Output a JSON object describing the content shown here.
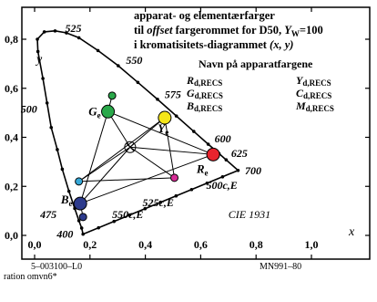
{
  "chart_data": {
    "type": "scatter",
    "title_lines": [
      "apparat- og elementærfarger",
      "til offset fargerommet for D50, Y_W=100",
      "i kromatisitets-diagrammet (x, y)"
    ],
    "title_parts": {
      "line2_a": "til ",
      "line2_offset": "offset",
      "line2_b": " fargerommet for D50, ",
      "line2_Y": "Y",
      "line2_W": "W",
      "line2_eq": "=100",
      "line3_a": "i kromatisitets-diagrammet ",
      "line3_xy": "(x, y)"
    },
    "legend_heading": "Navn på apparatfargene",
    "legend": [
      {
        "sym": "R",
        "sub": "d,RECS"
      },
      {
        "sym": "G",
        "sub": "d,RECS"
      },
      {
        "sym": "B",
        "sub": "d,RECS"
      },
      {
        "sym": "Y",
        "sub": "d,RECS"
      },
      {
        "sym": "C",
        "sub": "d,RECS"
      },
      {
        "sym": "M",
        "sub": "d,RECS"
      }
    ],
    "xlabel": "x",
    "ylabel": "y",
    "xlim": [
      0,
      1.1
    ],
    "ylim": [
      0,
      0.9
    ],
    "xticks": [
      "0,0",
      "0,2",
      "0,4",
      "0,6",
      "0,8",
      "1,0"
    ],
    "yticks": [
      "0,0",
      "0,2",
      "0,4",
      "0,6",
      "0,8"
    ],
    "spectral_locus": [
      [
        0.175,
        0.005
      ],
      [
        0.17,
        0.03
      ],
      [
        0.16,
        0.06
      ],
      [
        0.145,
        0.11
      ],
      [
        0.124,
        0.18
      ],
      [
        0.1,
        0.27
      ],
      [
        0.082,
        0.35
      ],
      [
        0.06,
        0.44
      ],
      [
        0.045,
        0.54
      ],
      [
        0.03,
        0.64
      ],
      [
        0.012,
        0.75
      ],
      [
        0.01,
        0.8
      ],
      [
        0.035,
        0.83
      ],
      [
        0.074,
        0.834
      ],
      [
        0.115,
        0.826
      ],
      [
        0.16,
        0.806
      ],
      [
        0.229,
        0.754
      ],
      [
        0.302,
        0.692
      ],
      [
        0.373,
        0.624
      ],
      [
        0.444,
        0.555
      ],
      [
        0.512,
        0.487
      ],
      [
        0.575,
        0.424
      ],
      [
        0.627,
        0.372
      ],
      [
        0.666,
        0.334
      ],
      [
        0.692,
        0.308
      ],
      [
        0.735,
        0.265
      ]
    ],
    "wavelength_labels": [
      {
        "text": "525",
        "x": 0.11,
        "y": 0.83
      },
      {
        "text": "550",
        "x": 0.33,
        "y": 0.7
      },
      {
        "text": "575",
        "x": 0.47,
        "y": 0.56
      },
      {
        "text": "600",
        "x": 0.65,
        "y": 0.38
      },
      {
        "text": "625",
        "x": 0.71,
        "y": 0.32
      },
      {
        "text": "700",
        "x": 0.76,
        "y": 0.25
      },
      {
        "text": "500",
        "x": -0.05,
        "y": 0.5
      },
      {
        "text": "475",
        "x": 0.02,
        "y": 0.07
      },
      {
        "text": "400",
        "x": 0.08,
        "y": -0.01
      }
    ],
    "annotations": [
      {
        "text": "500c,E",
        "x": 0.62,
        "y": 0.19
      },
      {
        "text": "525c,E",
        "x": 0.39,
        "y": 0.12
      },
      {
        "text": "550c,E",
        "x": 0.28,
        "y": 0.07
      },
      {
        "text": "CIE 1931",
        "x": 0.7,
        "y": 0.07
      }
    ],
    "device_colors": [
      {
        "name": "R",
        "x": 0.645,
        "y": 0.33,
        "color": "#e8242e",
        "big": true
      },
      {
        "name": "G",
        "x": 0.265,
        "y": 0.505,
        "color": "#2aa84a",
        "big": true
      },
      {
        "name": "B",
        "x": 0.165,
        "y": 0.13,
        "color": "#2c3a8c",
        "big": true
      },
      {
        "name": "Y",
        "x": 0.47,
        "y": 0.48,
        "color": "#f5e61a",
        "big": true
      },
      {
        "name": "C",
        "x": 0.16,
        "y": 0.22,
        "color": "#36a8d8",
        "big": false
      },
      {
        "name": "M",
        "x": 0.505,
        "y": 0.235,
        "color": "#d62d96",
        "big": false
      },
      {
        "name": "B2",
        "x": 0.175,
        "y": 0.075,
        "color": "#2c3a8c",
        "big": false
      },
      {
        "name": "G2",
        "x": 0.28,
        "y": 0.57,
        "color": "#2aa84a",
        "big": false
      }
    ],
    "white_point": {
      "x": 0.345,
      "y": 0.36
    },
    "point_labels": [
      {
        "sym": "G",
        "sub": "e",
        "x": 0.195,
        "y": 0.49
      },
      {
        "sym": "Y",
        "sub": "e",
        "x": 0.445,
        "y": 0.42
      },
      {
        "sym": "R",
        "sub": "e",
        "x": 0.585,
        "y": 0.255
      },
      {
        "sym": "B",
        "sub": "e",
        "x": 0.095,
        "y": 0.13
      }
    ]
  },
  "footer": {
    "left1": "5–003100–L0",
    "left2": "ration omvn6*",
    "right": "MN991–80"
  }
}
